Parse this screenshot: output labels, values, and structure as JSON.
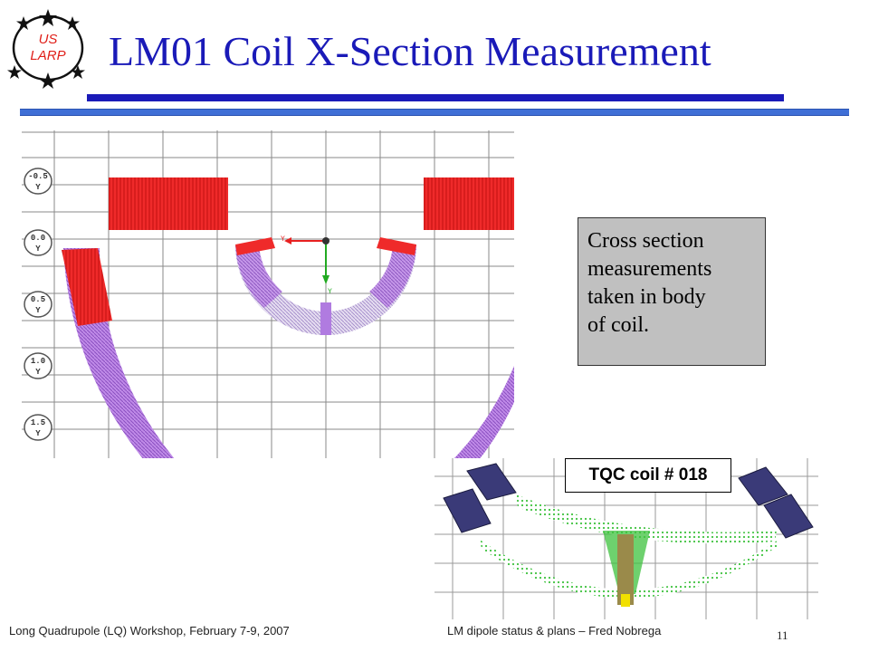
{
  "logo": {
    "line1": "US",
    "line2": "LARP"
  },
  "title": "LM01 Coil X-Section Measurement",
  "callout": {
    "lines": [
      "Cross section",
      "measurements",
      "taken in body",
      "of coil."
    ]
  },
  "tqc_label": "TQC coil # 018",
  "left_panel": {
    "markers": [
      "-0.5",
      "0.0",
      "0.5",
      "1.0",
      "1.5"
    ],
    "marker_axis": "Y",
    "origin_label_x": "Y",
    "origin_label_y": "Y"
  },
  "colors": {
    "title": "#1a1ab8",
    "accent_bar": "#3f6fd6",
    "coil_red": "#e82020",
    "coil_purple": "#b07be0",
    "tqc_green": "#3ec23e",
    "tqc_block": "#3a3a78"
  },
  "footer": {
    "left": "Long Quadrupole (LQ) Workshop, February 7-9, 2007",
    "center": "LM dipole status & plans – Fred Nobrega",
    "page": "11"
  }
}
